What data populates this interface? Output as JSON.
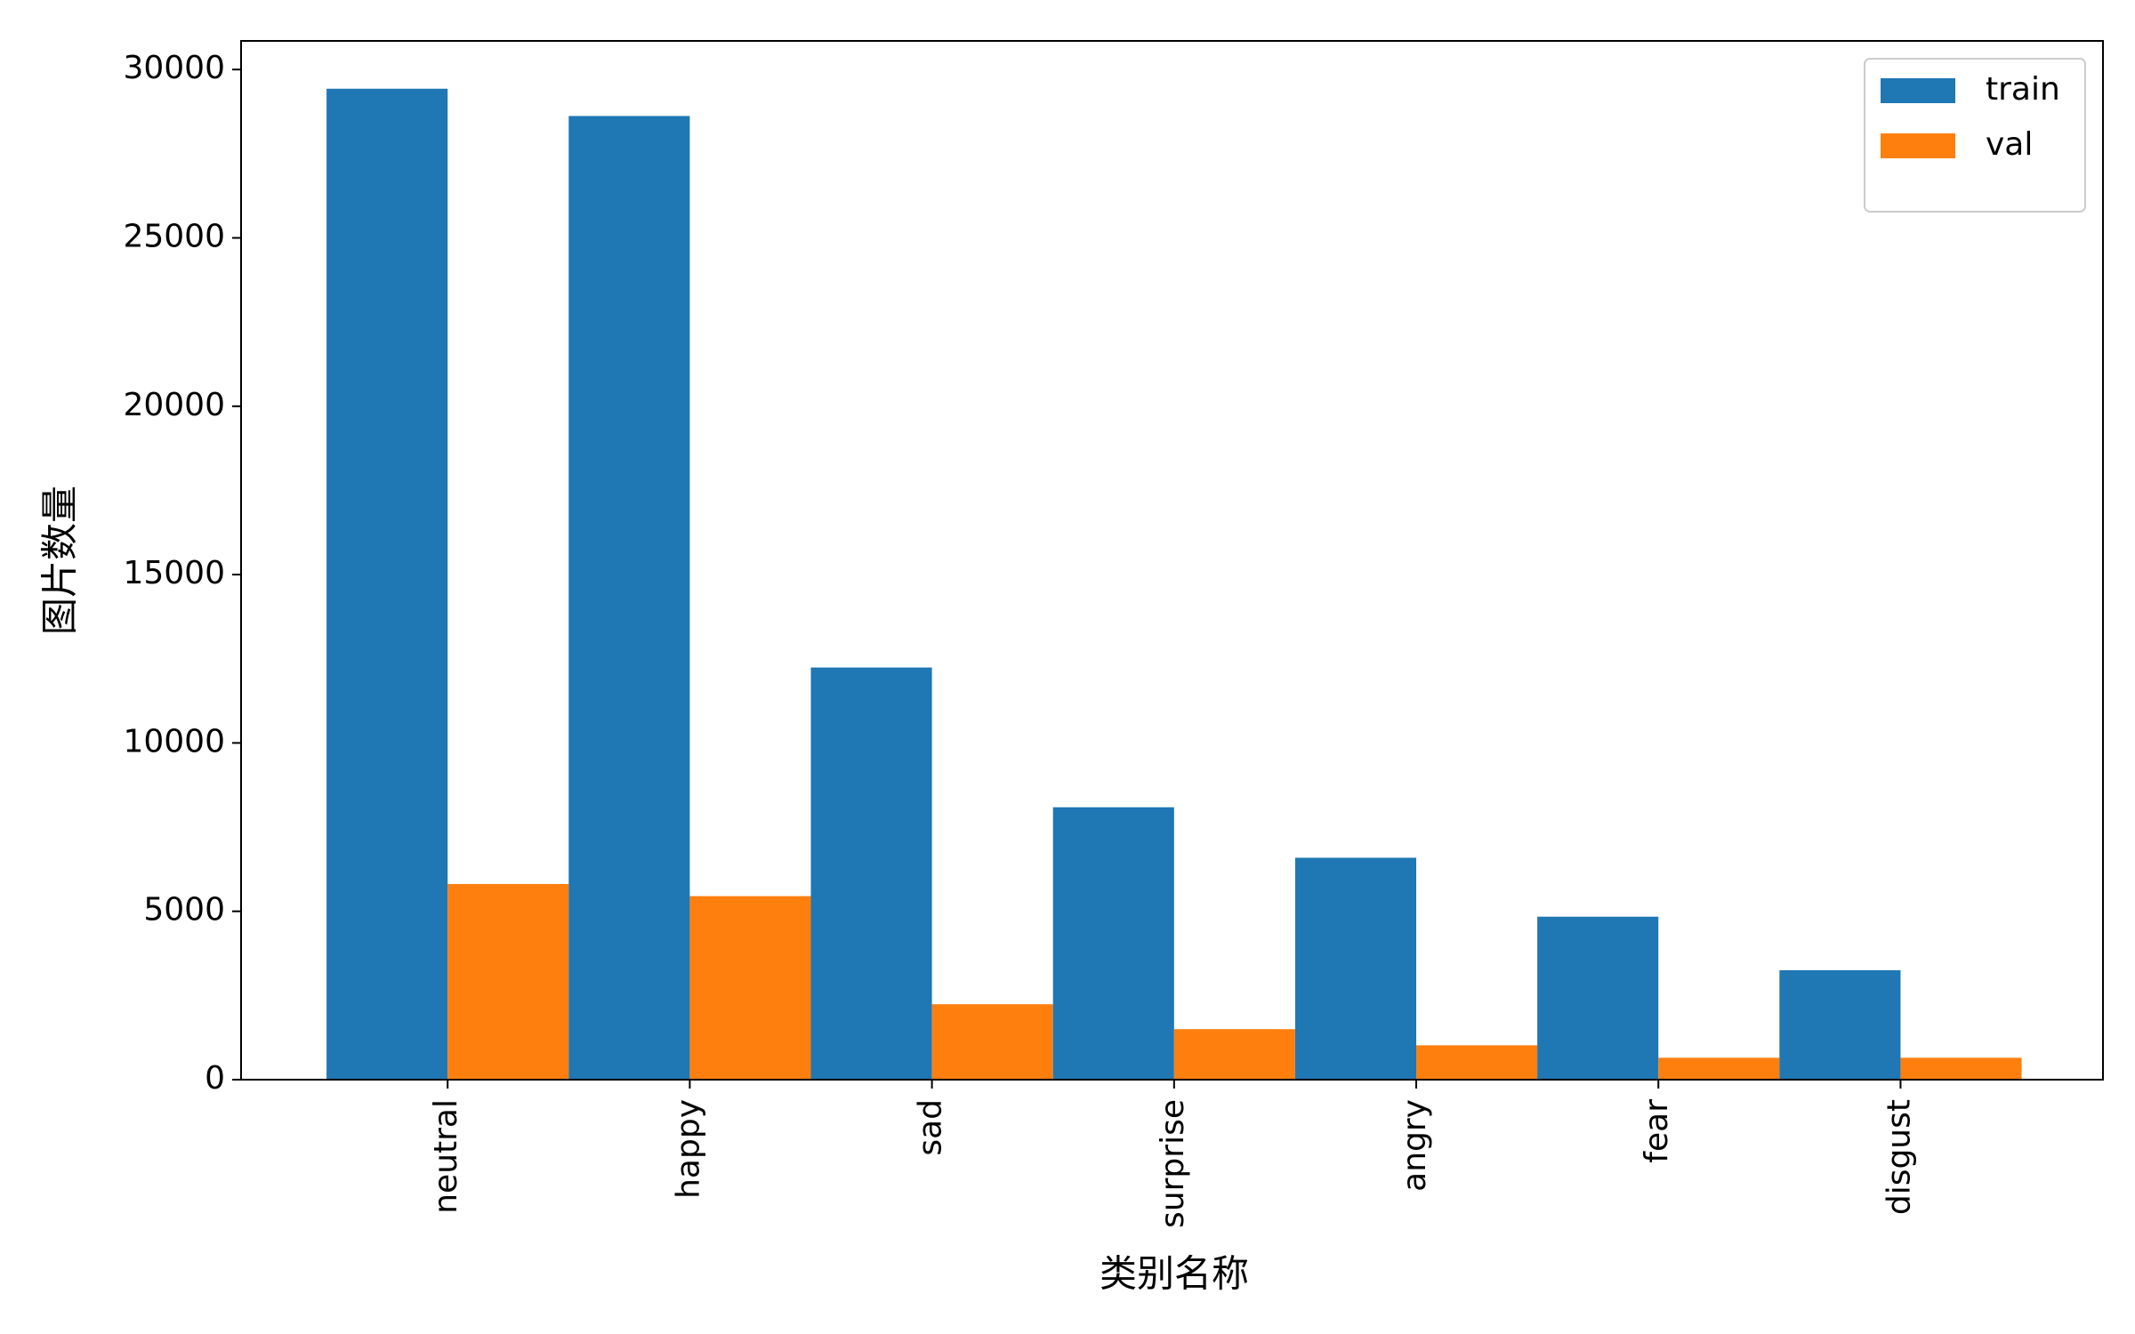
{
  "chart_data": {
    "type": "bar",
    "x_label": "类别名称",
    "y_label": "图片数量",
    "categories": [
      "neutral",
      "happy",
      "sad",
      "surprise",
      "angry",
      "fear",
      "disgust"
    ],
    "series": [
      {
        "name": "train",
        "color": "#1f77b4",
        "values": [
          29430,
          28620,
          12240,
          8090,
          6590,
          4840,
          3250
        ]
      },
      {
        "name": "val",
        "color": "#ff7f0e",
        "values": [
          5810,
          5450,
          2240,
          1500,
          1020,
          650,
          650
        ]
      }
    ],
    "ylim": [
      0,
      30850
    ],
    "yticks": [
      0,
      5000,
      10000,
      15000,
      20000,
      25000,
      30000
    ],
    "legend": "upper right",
    "grid": false
  }
}
